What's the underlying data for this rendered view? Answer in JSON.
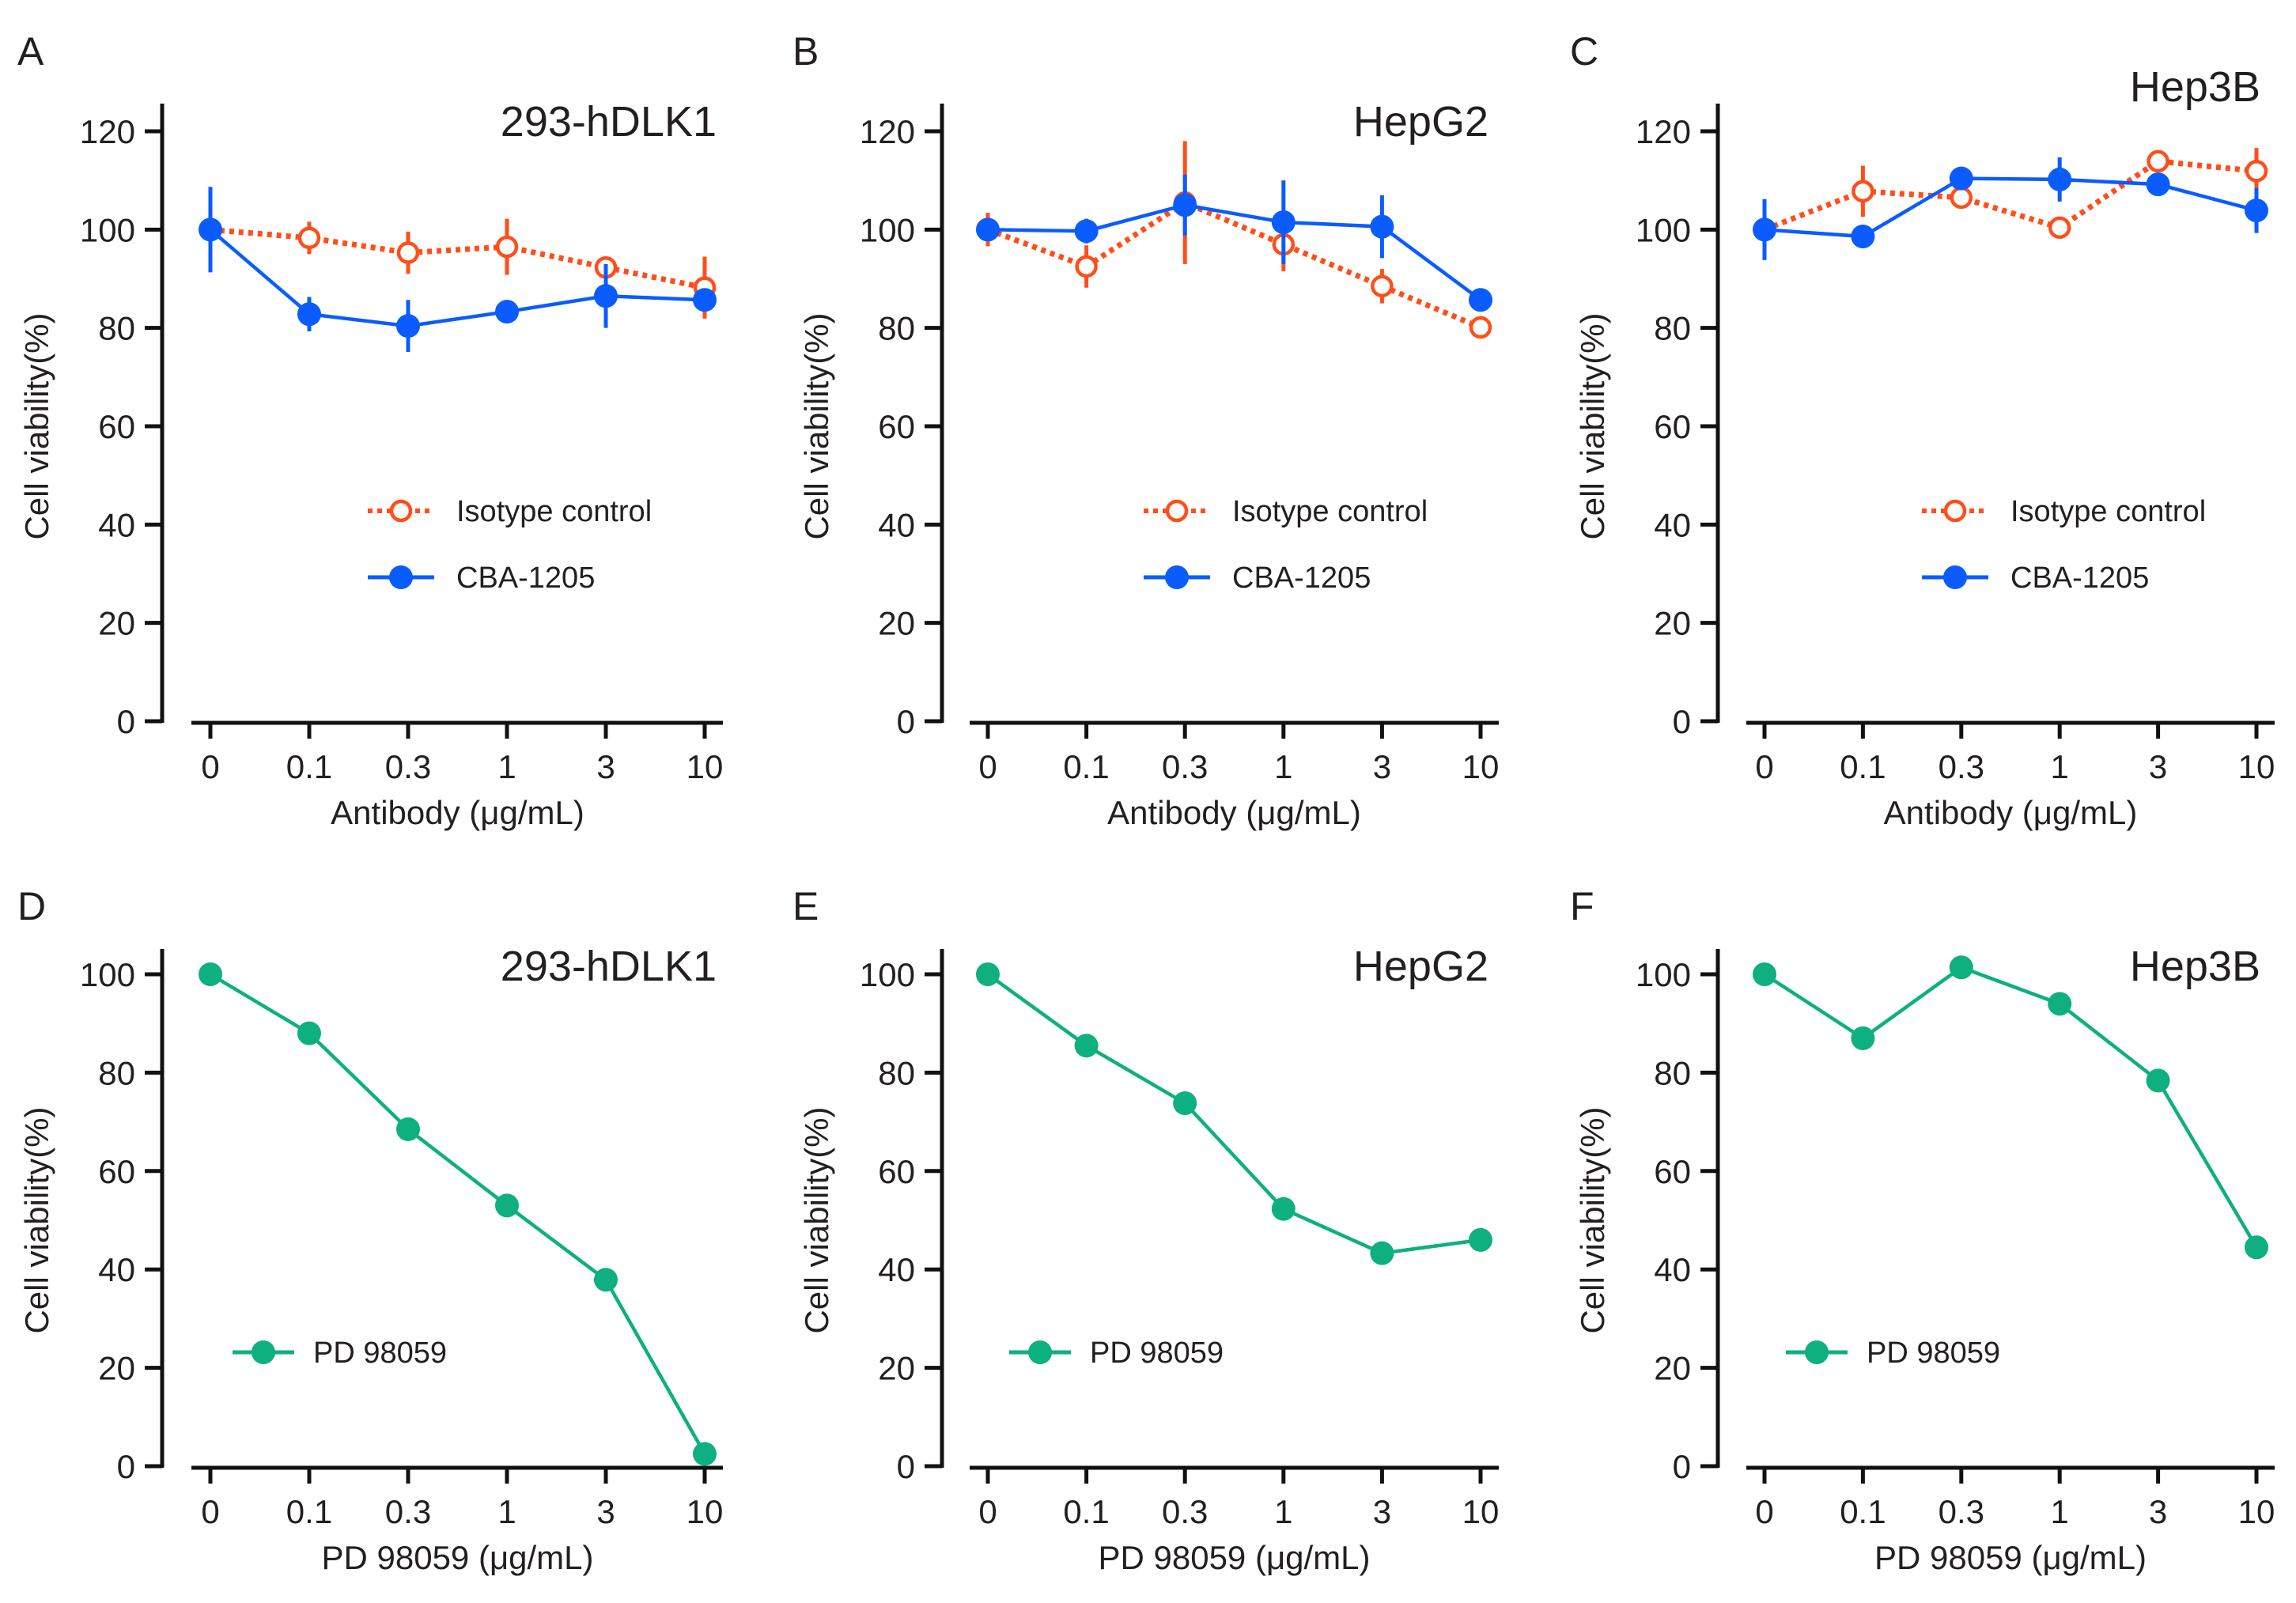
{
  "figure": {
    "colors": {
      "isotype": "#FF4E1A",
      "cba": "#0A5CFF",
      "pd": "#0DB07E",
      "axis": "#111111",
      "text": "#231f20"
    }
  },
  "chart_data": [
    {
      "panel": "A",
      "type": "line",
      "title": "293-hDLK1",
      "xlabel": "Antibody (μg/mL)",
      "ylabel": "Cell viability(%)",
      "categories": [
        "0",
        "0.1",
        "0.3",
        "1",
        "3",
        "10"
      ],
      "ylim": [
        0,
        120
      ],
      "yticks": [
        0,
        20,
        40,
        60,
        80,
        100,
        120
      ],
      "legend_position": "center-right",
      "series": [
        {
          "name": "Isotype control",
          "style": "dotted-open-circle",
          "color_key": "isotype",
          "values": [
            100,
            98.3,
            95.3,
            96.5,
            92.3,
            88.2
          ],
          "errors": [
            0,
            3.3,
            4.3,
            5.7,
            1.5,
            6.3
          ]
        },
        {
          "name": "CBA-1205",
          "style": "solid-filled-circle",
          "color_key": "cba",
          "values": [
            100,
            82.8,
            80.4,
            83.3,
            86.5,
            85.7
          ],
          "errors": [
            8.7,
            3.5,
            5.3,
            1.5,
            6.5,
            1.5
          ]
        }
      ]
    },
    {
      "panel": "B",
      "type": "line",
      "title": "HepG2",
      "xlabel": "Antibody (μg/mL)",
      "ylabel": "Cell viability(%)",
      "categories": [
        "0",
        "0.1",
        "0.3",
        "1",
        "3",
        "10"
      ],
      "ylim": [
        0,
        120
      ],
      "yticks": [
        0,
        20,
        40,
        60,
        80,
        100,
        120
      ],
      "legend_position": "center-right",
      "series": [
        {
          "name": "Isotype control",
          "style": "dotted-open-circle",
          "color_key": "isotype",
          "values": [
            100,
            92.5,
            105.5,
            97,
            88.5,
            80.1
          ],
          "errors": [
            3.4,
            4.3,
            12.5,
            5.5,
            3.5,
            0.5
          ]
        },
        {
          "name": "CBA-1205",
          "style": "solid-filled-circle",
          "color_key": "cba",
          "values": [
            100,
            99.7,
            105,
            101.5,
            100.6,
            85.7
          ],
          "errors": [
            1.5,
            2.5,
            6.2,
            8.5,
            6.4,
            0.5
          ]
        }
      ]
    },
    {
      "panel": "C",
      "type": "line",
      "title": "Hep3B",
      "xlabel": "Antibody (μg/mL)",
      "ylabel": "Cell viability(%)",
      "categories": [
        "0",
        "0.1",
        "0.3",
        "1",
        "3",
        "10"
      ],
      "ylim": [
        0,
        120
      ],
      "yticks": [
        0,
        20,
        40,
        60,
        80,
        100,
        120
      ],
      "legend_position": "center-right",
      "series": [
        {
          "name": "Isotype control",
          "style": "dotted-open-circle",
          "color_key": "isotype",
          "values": [
            100,
            107.8,
            106.5,
            100.4,
            113.9,
            111.9
          ],
          "errors": [
            0.5,
            5.2,
            0.5,
            0.5,
            0.5,
            4.7
          ]
        },
        {
          "name": "CBA-1205",
          "style": "solid-filled-circle",
          "color_key": "cba",
          "values": [
            100,
            98.6,
            110.4,
            110.2,
            109.2,
            103.9
          ],
          "errors": [
            6.2,
            0.5,
            0.5,
            4.5,
            0.5,
            4.6
          ]
        }
      ]
    },
    {
      "panel": "D",
      "type": "line",
      "title": "293-hDLK1",
      "xlabel": "PD 98059 (μg/mL)",
      "ylabel": "Cell viability(%)",
      "categories": [
        "0",
        "0.1",
        "0.3",
        "1",
        "3",
        "10"
      ],
      "ylim": [
        0,
        100
      ],
      "yticks": [
        0,
        20,
        40,
        60,
        80,
        100
      ],
      "legend_position": "lower-left",
      "series": [
        {
          "name": "PD 98059",
          "style": "solid-filled-circle",
          "color_key": "pd",
          "values": [
            100,
            88.0,
            68.5,
            53.0,
            37.9,
            2.5
          ]
        }
      ]
    },
    {
      "panel": "E",
      "type": "line",
      "title": "HepG2",
      "xlabel": "PD 98059 (μg/mL)",
      "ylabel": "Cell viability(%)",
      "categories": [
        "0",
        "0.1",
        "0.3",
        "1",
        "3",
        "10"
      ],
      "ylim": [
        0,
        100
      ],
      "yticks": [
        0,
        20,
        40,
        60,
        80,
        100
      ],
      "legend_position": "lower-left",
      "series": [
        {
          "name": "PD 98059",
          "style": "solid-filled-circle",
          "color_key": "pd",
          "values": [
            100,
            85.5,
            73.8,
            52.3,
            43.3,
            46.0
          ]
        }
      ]
    },
    {
      "panel": "F",
      "type": "line",
      "title": "Hep3B",
      "xlabel": "PD 98059 (μg/mL)",
      "ylabel": "Cell viability(%)",
      "categories": [
        "0",
        "0.1",
        "0.3",
        "1",
        "3",
        "10"
      ],
      "ylim": [
        0,
        100
      ],
      "yticks": [
        0,
        20,
        40,
        60,
        80,
        100
      ],
      "legend_position": "lower-left",
      "series": [
        {
          "name": "PD 98059",
          "style": "solid-filled-circle",
          "color_key": "pd",
          "values": [
            100,
            87.0,
            101.4,
            94.0,
            78.4,
            44.5
          ]
        }
      ]
    }
  ]
}
